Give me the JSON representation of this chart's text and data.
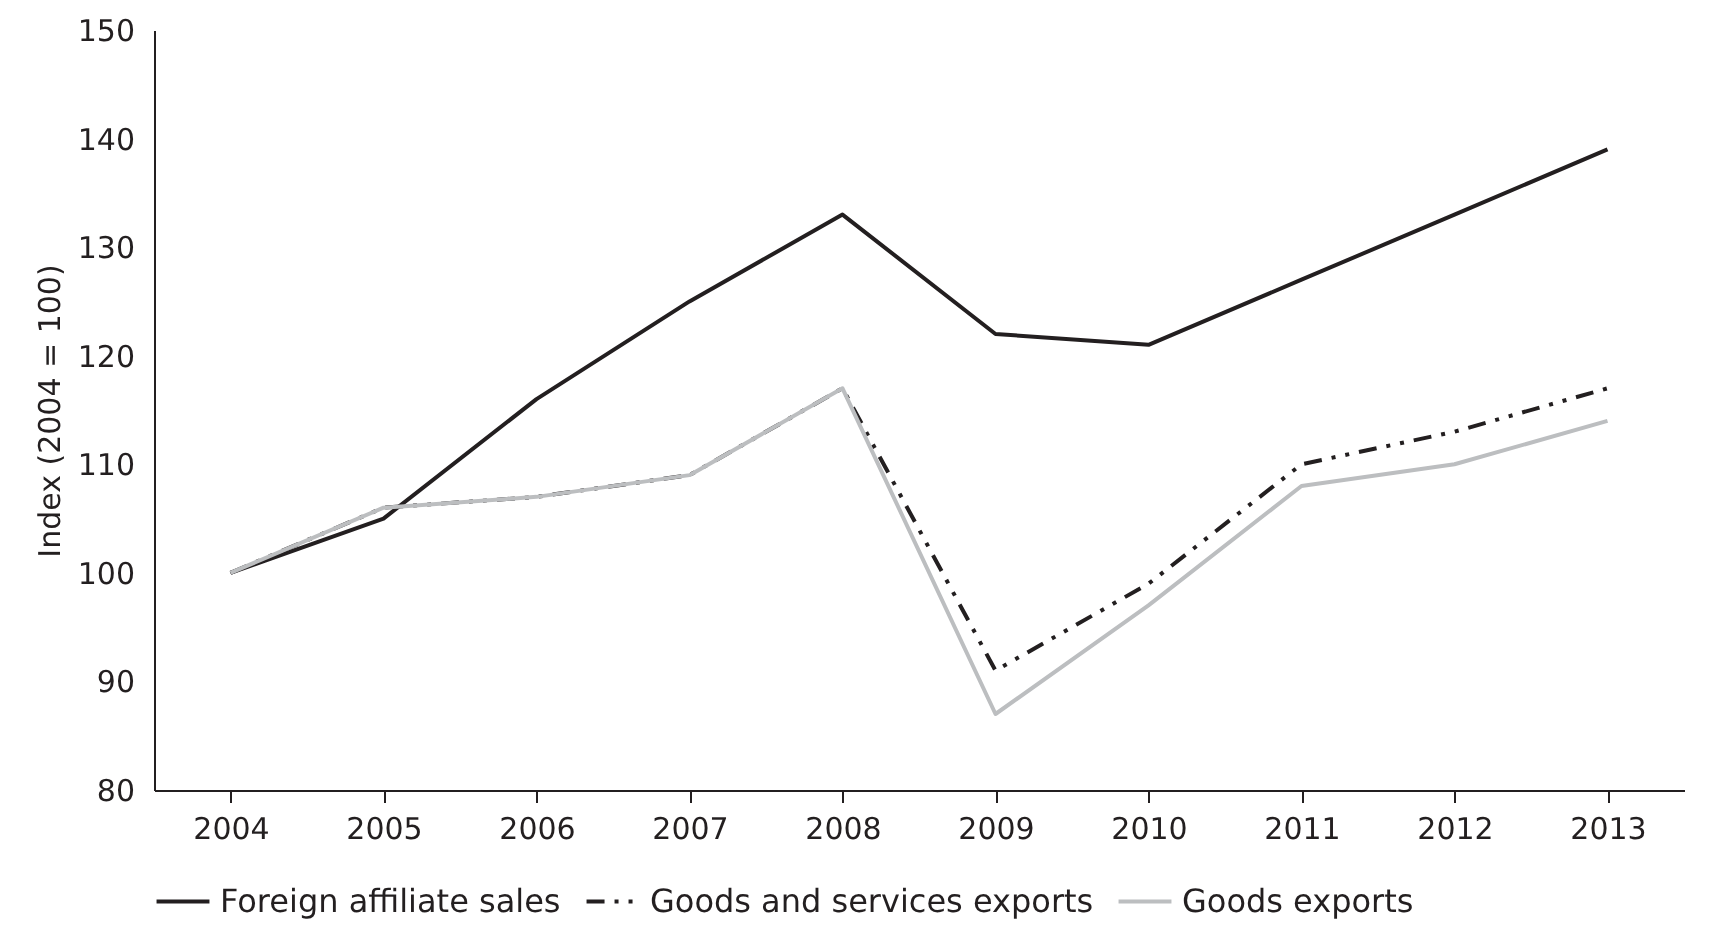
{
  "chart_data": {
    "type": "line",
    "ylabel": "Index (2004 = 100)",
    "categories": [
      "2004",
      "2005",
      "2006",
      "2007",
      "2008",
      "2009",
      "2010",
      "2011",
      "2012",
      "2013"
    ],
    "series": [
      {
        "name": "Foreign affiliate sales",
        "color": "#231f20",
        "line_style": "solid",
        "values": [
          100,
          105,
          116,
          125,
          133,
          122,
          121,
          127,
          133,
          139
        ]
      },
      {
        "name": "Goods and services exports",
        "color": "#231f20",
        "line_style": "dashed",
        "values": [
          100,
          106,
          107,
          109,
          117,
          91,
          99,
          110,
          113,
          117
        ]
      },
      {
        "name": "Goods exports",
        "color": "#bcbec0",
        "line_style": "solid",
        "values": [
          100,
          106,
          107,
          109,
          117,
          87,
          97,
          108,
          110,
          114
        ]
      }
    ],
    "ylim": [
      80,
      150
    ],
    "yticks": [
      80,
      90,
      100,
      110,
      120,
      130,
      140,
      150
    ],
    "grid": false,
    "legend": "bottom",
    "marker": "none"
  }
}
